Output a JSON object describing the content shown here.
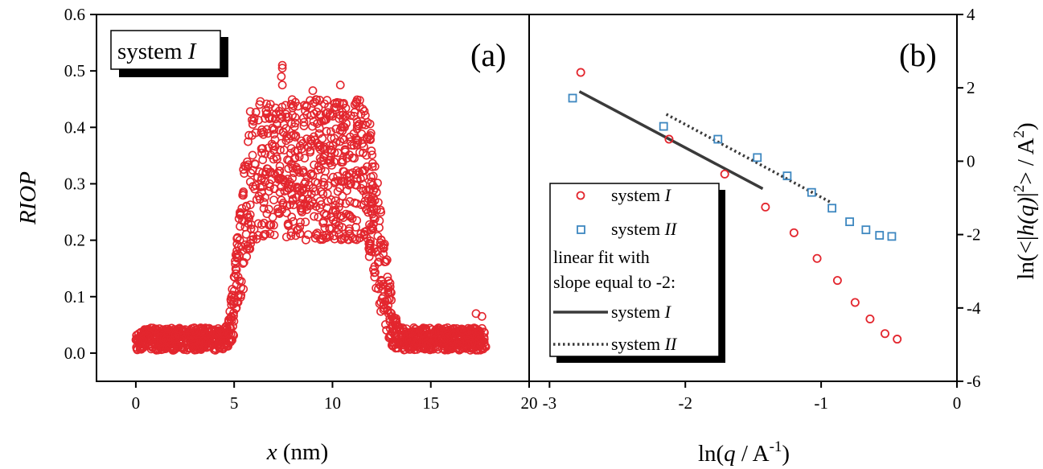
{
  "colors": {
    "system_I": "#e3262e",
    "system_II": "#3d87c0",
    "fit": "#3a3a3a",
    "axis": "#000000"
  },
  "chart_data": [
    {
      "panel": "(a)",
      "type": "scatter",
      "inset_label": {
        "prefix": "system ",
        "italic": "I"
      },
      "xlabel": {
        "italic": "x",
        "rest": " (nm)"
      },
      "ylabel": "RIOP",
      "xlim": [
        -2,
        20
      ],
      "ylim": [
        -0.05,
        0.6
      ],
      "xticks": [
        "0",
        "5",
        "10",
        "15",
        "20"
      ],
      "xtick_values": [
        0,
        5,
        10,
        15,
        20
      ],
      "yticks": [
        "0.0",
        "0.1",
        "0.2",
        "0.3",
        "0.4",
        "0.5",
        "0.6"
      ],
      "ytick_values": [
        0.0,
        0.1,
        0.2,
        0.3,
        0.4,
        0.5,
        0.6
      ],
      "grid": false,
      "marker": "open-circle",
      "profile": {
        "x_range": [
          0,
          17.8
        ],
        "baseline_min": 0.005,
        "baseline_max": 0.045,
        "plateau_x": [
          6.0,
          11.5
        ],
        "plateau_min": 0.2,
        "plateau_max": 0.45,
        "rise_x": [
          4.5,
          6.0
        ],
        "fall_x": [
          11.5,
          13.5
        ],
        "n_points": 1700
      },
      "outliers": [
        {
          "x": 7.45,
          "y": 0.51
        },
        {
          "x": 7.45,
          "y": 0.505
        },
        {
          "x": 7.4,
          "y": 0.49
        },
        {
          "x": 7.45,
          "y": 0.475
        },
        {
          "x": 10.4,
          "y": 0.475
        },
        {
          "x": 9.0,
          "y": 0.465
        },
        {
          "x": 17.3,
          "y": 0.07
        },
        {
          "x": 17.6,
          "y": 0.065
        }
      ]
    },
    {
      "panel": "(b)",
      "type": "scatter",
      "xlabel": {
        "base": "ln(",
        "italic": "q",
        "rest": " / A",
        "sup": "-1",
        "close": ")"
      },
      "ylabel": {
        "base": "ln(<|",
        "italic": "h(q)",
        "rest": "|",
        "sup1": "2",
        "rest2": "> / A",
        "sup2": "2",
        "close": ")"
      },
      "xlim": [
        -3.15,
        0
      ],
      "ylim": [
        -6,
        4
      ],
      "xticks": [
        "-3",
        "-2",
        "-1",
        "0"
      ],
      "xtick_values": [
        -3,
        -2,
        -1,
        0
      ],
      "yticks": [
        "-6",
        "-4",
        "-2",
        "0",
        "2",
        "4"
      ],
      "ytick_values": [
        -6,
        -4,
        -2,
        0,
        2,
        4
      ],
      "grid": false,
      "legend_position": "center-left",
      "series": [
        {
          "name": {
            "prefix": "system ",
            "italic": "I"
          },
          "marker": "open-circle",
          "color_key": "system_I",
          "x": [
            -2.77,
            -2.12,
            -1.71,
            -1.41,
            -1.2,
            -1.03,
            -0.88,
            -0.75,
            -0.64,
            -0.53,
            -0.44
          ],
          "y": [
            2.42,
            0.6,
            -0.35,
            -1.25,
            -1.95,
            -2.65,
            -3.25,
            -3.85,
            -4.3,
            -4.7,
            -4.85
          ]
        },
        {
          "name": {
            "prefix": "system ",
            "italic": "II"
          },
          "marker": "open-square",
          "color_key": "system_II",
          "x": [
            -2.83,
            -2.16,
            -1.76,
            -1.47,
            -1.25,
            -1.07,
            -0.92,
            -0.79,
            -0.67,
            -0.57,
            -0.48
          ],
          "y": [
            1.72,
            0.95,
            0.6,
            0.1,
            -0.4,
            -0.85,
            -1.28,
            -1.65,
            -1.87,
            -2.02,
            -2.05
          ]
        }
      ],
      "legend_heading": [
        "linear fit with",
        "slope equal to -2:"
      ],
      "fits": [
        {
          "name": {
            "prefix": "system ",
            "italic": "I"
          },
          "style": "solid",
          "color_key": "fit",
          "x": [
            -2.78,
            -1.43
          ],
          "y": [
            1.9,
            -0.75
          ]
        },
        {
          "name": {
            "prefix": "system ",
            "italic": "II"
          },
          "style": "dotted",
          "color_key": "fit",
          "x": [
            -2.14,
            -0.93
          ],
          "y": [
            1.28,
            -1.12
          ]
        }
      ]
    }
  ]
}
